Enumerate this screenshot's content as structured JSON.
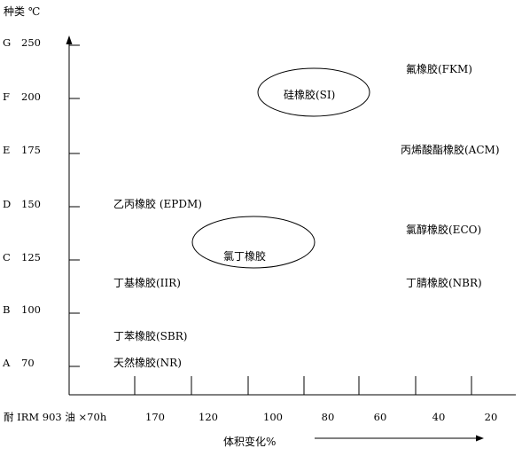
{
  "chart_data": {
    "type": "scatter",
    "header": "种类 ℃",
    "y_rows": [
      {
        "grade": "G",
        "temp": "250"
      },
      {
        "grade": "F",
        "temp": "200"
      },
      {
        "grade": "E",
        "temp": "175"
      },
      {
        "grade": "D",
        "temp": "150"
      },
      {
        "grade": "C",
        "temp": "125"
      },
      {
        "grade": "B",
        "temp": "100"
      },
      {
        "grade": "A",
        "temp": "70"
      }
    ],
    "x_caption": "耐 IRM 903 油 ×70h",
    "x_ticks": [
      "170",
      "120",
      "100",
      "80",
      "60",
      "40",
      "20"
    ],
    "x_label": "体积变化%",
    "rubbers": [
      {
        "name": "氟橡胶(FKM)",
        "temp": 210,
        "volume_change": 25
      },
      {
        "name": "硅橡胶(SI)",
        "temp": 200,
        "volume_change": 80,
        "circled": true
      },
      {
        "name": "丙烯酸酯橡胶(ACM)",
        "temp": 175,
        "volume_change": 25
      },
      {
        "name": "乙丙橡胶 (EPDM)",
        "temp": 150,
        "volume_change": 170
      },
      {
        "name": "氯醇橡胶(ECO)",
        "temp": 140,
        "volume_change": 30
      },
      {
        "name": "氯丁橡胶",
        "temp": 125,
        "volume_change": 100,
        "circled": true
      },
      {
        "name": "丁基橡胶(IIR)",
        "temp": 115,
        "volume_change": 170
      },
      {
        "name": "丁腈橡胶(NBR)",
        "temp": 115,
        "volume_change": 30
      },
      {
        "name": "丁苯橡胶(SBR)",
        "temp": 88,
        "volume_change": 170
      },
      {
        "name": "天然橡胶(NR)",
        "temp": 70,
        "volume_change": 170
      }
    ]
  }
}
